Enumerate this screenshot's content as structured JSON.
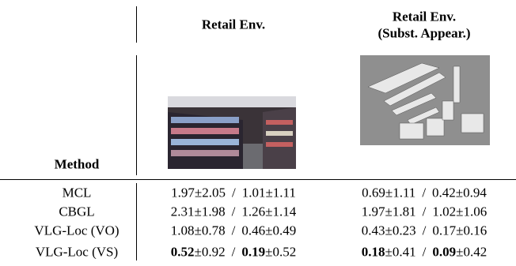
{
  "table": {
    "header": {
      "method": "Method",
      "columns": [
        "Retail Env.",
        [
          "Retail Env.",
          "(Subst. Appear.)"
        ]
      ]
    },
    "separator": "/",
    "rows": [
      {
        "method": "MCL",
        "bold": false,
        "cells": [
          [
            {
              "mean": "1.97",
              "std": "±2.05"
            },
            {
              "mean": "1.01",
              "std": "±1.11"
            }
          ],
          [
            {
              "mean": "0.69",
              "std": "±1.11"
            },
            {
              "mean": "0.42",
              "std": "±0.94"
            }
          ]
        ]
      },
      {
        "method": "CBGL",
        "bold": false,
        "cells": [
          [
            {
              "mean": "2.31",
              "std": "±1.98"
            },
            {
              "mean": "1.26",
              "std": "±1.14"
            }
          ],
          [
            {
              "mean": "1.97",
              "std": "±1.81"
            },
            {
              "mean": "1.02",
              "std": "±1.06"
            }
          ]
        ]
      },
      {
        "method": "VLG-Loc (VO)",
        "bold": false,
        "cells": [
          [
            {
              "mean": "1.08",
              "std": "±0.78"
            },
            {
              "mean": "0.46",
              "std": "±0.49"
            }
          ],
          [
            {
              "mean": "0.43",
              "std": "±0.23"
            },
            {
              "mean": "0.17",
              "std": "±0.16"
            }
          ]
        ]
      },
      {
        "method": "VLG-Loc (VS)",
        "bold": true,
        "cells": [
          [
            {
              "mean": "0.52",
              "std": "±0.92"
            },
            {
              "mean": "0.19",
              "std": "±0.52"
            }
          ],
          [
            {
              "mean": "0.18",
              "std": "±0.41"
            },
            {
              "mean": "0.09",
              "std": "±0.42"
            }
          ]
        ]
      }
    ]
  }
}
